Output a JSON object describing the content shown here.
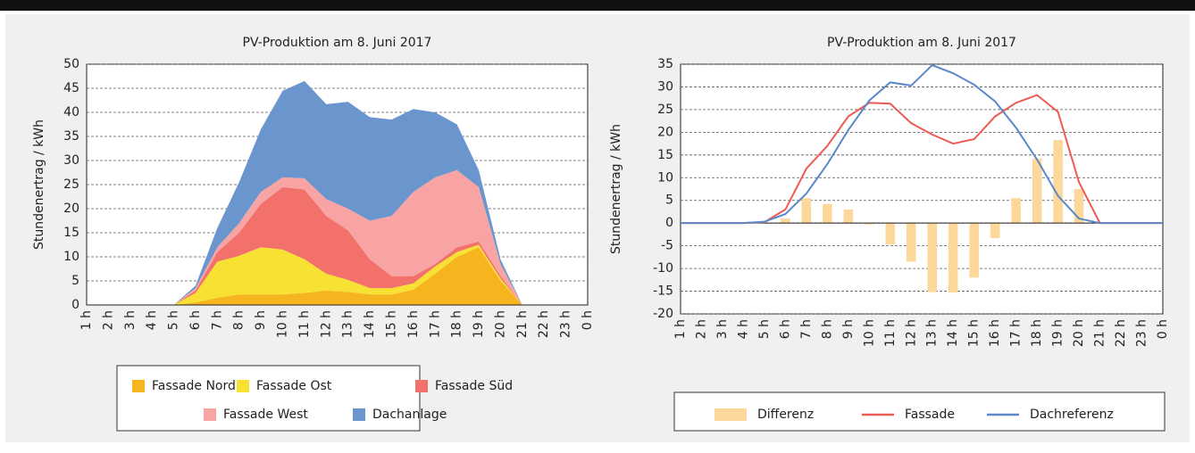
{
  "chart_data": [
    {
      "type": "area",
      "stacked": true,
      "title": "PV-Produktion am 8. Juni 2017",
      "y_label": "Stundenertrag / kWh",
      "categories": [
        "1 h",
        "2 h",
        "3 h",
        "4 h",
        "5 h",
        "6 h",
        "7 h",
        "8 h",
        "9 h",
        "10 h",
        "11 h",
        "12 h",
        "13 h",
        "14 h",
        "15 h",
        "16 h",
        "17 h",
        "18 h",
        "19 h",
        "20 h",
        "21 h",
        "22 h",
        "23 h",
        "0 h"
      ],
      "series": [
        {
          "name": "Fassade Nord",
          "color": "#f6b51f",
          "values": [
            0,
            0,
            0,
            0,
            0,
            0.5,
            1.5,
            2.2,
            2.2,
            2.2,
            2.5,
            3,
            2.7,
            2.2,
            2.2,
            3.2,
            6.5,
            10,
            12,
            5,
            0,
            0,
            0,
            0
          ]
        },
        {
          "name": "Fassade Ost",
          "color": "#f7e133",
          "values": [
            0,
            0,
            0,
            0,
            0,
            2,
            7.5,
            8,
            9.8,
            9.3,
            7,
            3.5,
            2.5,
            1.3,
            1.3,
            1.3,
            1.5,
            1,
            0.5,
            0.5,
            0,
            0,
            0,
            0
          ]
        },
        {
          "name": "Fassade Süd",
          "color": "#f2716a",
          "values": [
            0,
            0,
            0,
            0,
            0,
            0.5,
            2,
            4.8,
            9,
            13,
            14.5,
            12,
            10.3,
            6,
            2.5,
            1.5,
            0.5,
            1,
            0.7,
            0.5,
            0,
            0,
            0,
            0
          ]
        },
        {
          "name": "Fassade West",
          "color": "#f9a4a4",
          "values": [
            0,
            0,
            0,
            0,
            0,
            0.5,
            1,
            2,
            2.5,
            2,
            2.3,
            3.5,
            4.5,
            8,
            12.5,
            17.5,
            18,
            16,
            11.3,
            2.5,
            0,
            0,
            0,
            0
          ]
        },
        {
          "name": "Dachanlage",
          "color": "#6a96cd",
          "values": [
            0,
            0,
            0,
            0,
            0,
            0.5,
            4,
            8.5,
            13,
            18,
            20.2,
            19.7,
            22.2,
            21.5,
            20,
            17.2,
            13.5,
            9.5,
            3.5,
            1,
            0,
            0,
            0,
            0
          ]
        }
      ],
      "ylim": [
        0,
        50
      ],
      "yticks": [
        0,
        5,
        10,
        15,
        20,
        25,
        30,
        35,
        40,
        45,
        50
      ],
      "grid": true,
      "legend": "bottom"
    },
    {
      "type": "combo",
      "title": "PV-Produktion am 8. Juni 2017",
      "y_label": "Stundenertrag / kWh",
      "categories": [
        "1 h",
        "2 h",
        "3 h",
        "4 h",
        "5 h",
        "6 h",
        "7 h",
        "8 h",
        "9 h",
        "10 h",
        "11 h",
        "12 h",
        "13 h",
        "14 h",
        "15 h",
        "16 h",
        "17 h",
        "18 h",
        "19 h",
        "20 h",
        "21 h",
        "22 h",
        "23 h",
        "0 h"
      ],
      "series": [
        {
          "name": "Differenz",
          "type": "bar",
          "color": "#fdd89a",
          "values": [
            0,
            0,
            0,
            0,
            0,
            1,
            5.5,
            4.2,
            3,
            -0.3,
            -4.7,
            -8.5,
            -15.2,
            -15.3,
            -12,
            -3.3,
            5.5,
            14.2,
            18.3,
            7.5,
            0,
            0,
            0,
            0
          ]
        },
        {
          "name": "Fassade",
          "type": "line",
          "color": "#ee5b53",
          "values": [
            0,
            0,
            0,
            0,
            0.2,
            3,
            12,
            17,
            23.5,
            26.5,
            26.3,
            22,
            19.5,
            17.5,
            18.5,
            23.5,
            26.5,
            28.2,
            24.5,
            9,
            0,
            0,
            0,
            0
          ]
        },
        {
          "name": "Dachreferenz",
          "type": "line",
          "color": "#5b88c8",
          "values": [
            0,
            0,
            0,
            0,
            0.3,
            2,
            6.5,
            13,
            20.5,
            27,
            31,
            30.3,
            34.8,
            33,
            30.5,
            26.8,
            21,
            14,
            6,
            1,
            0,
            0,
            0,
            0
          ]
        }
      ],
      "ylim": [
        -20,
        35
      ],
      "yticks": [
        -20,
        -15,
        -10,
        -5,
        0,
        5,
        10,
        15,
        20,
        25,
        30,
        35
      ],
      "grid": true,
      "legend": "bottom"
    }
  ]
}
